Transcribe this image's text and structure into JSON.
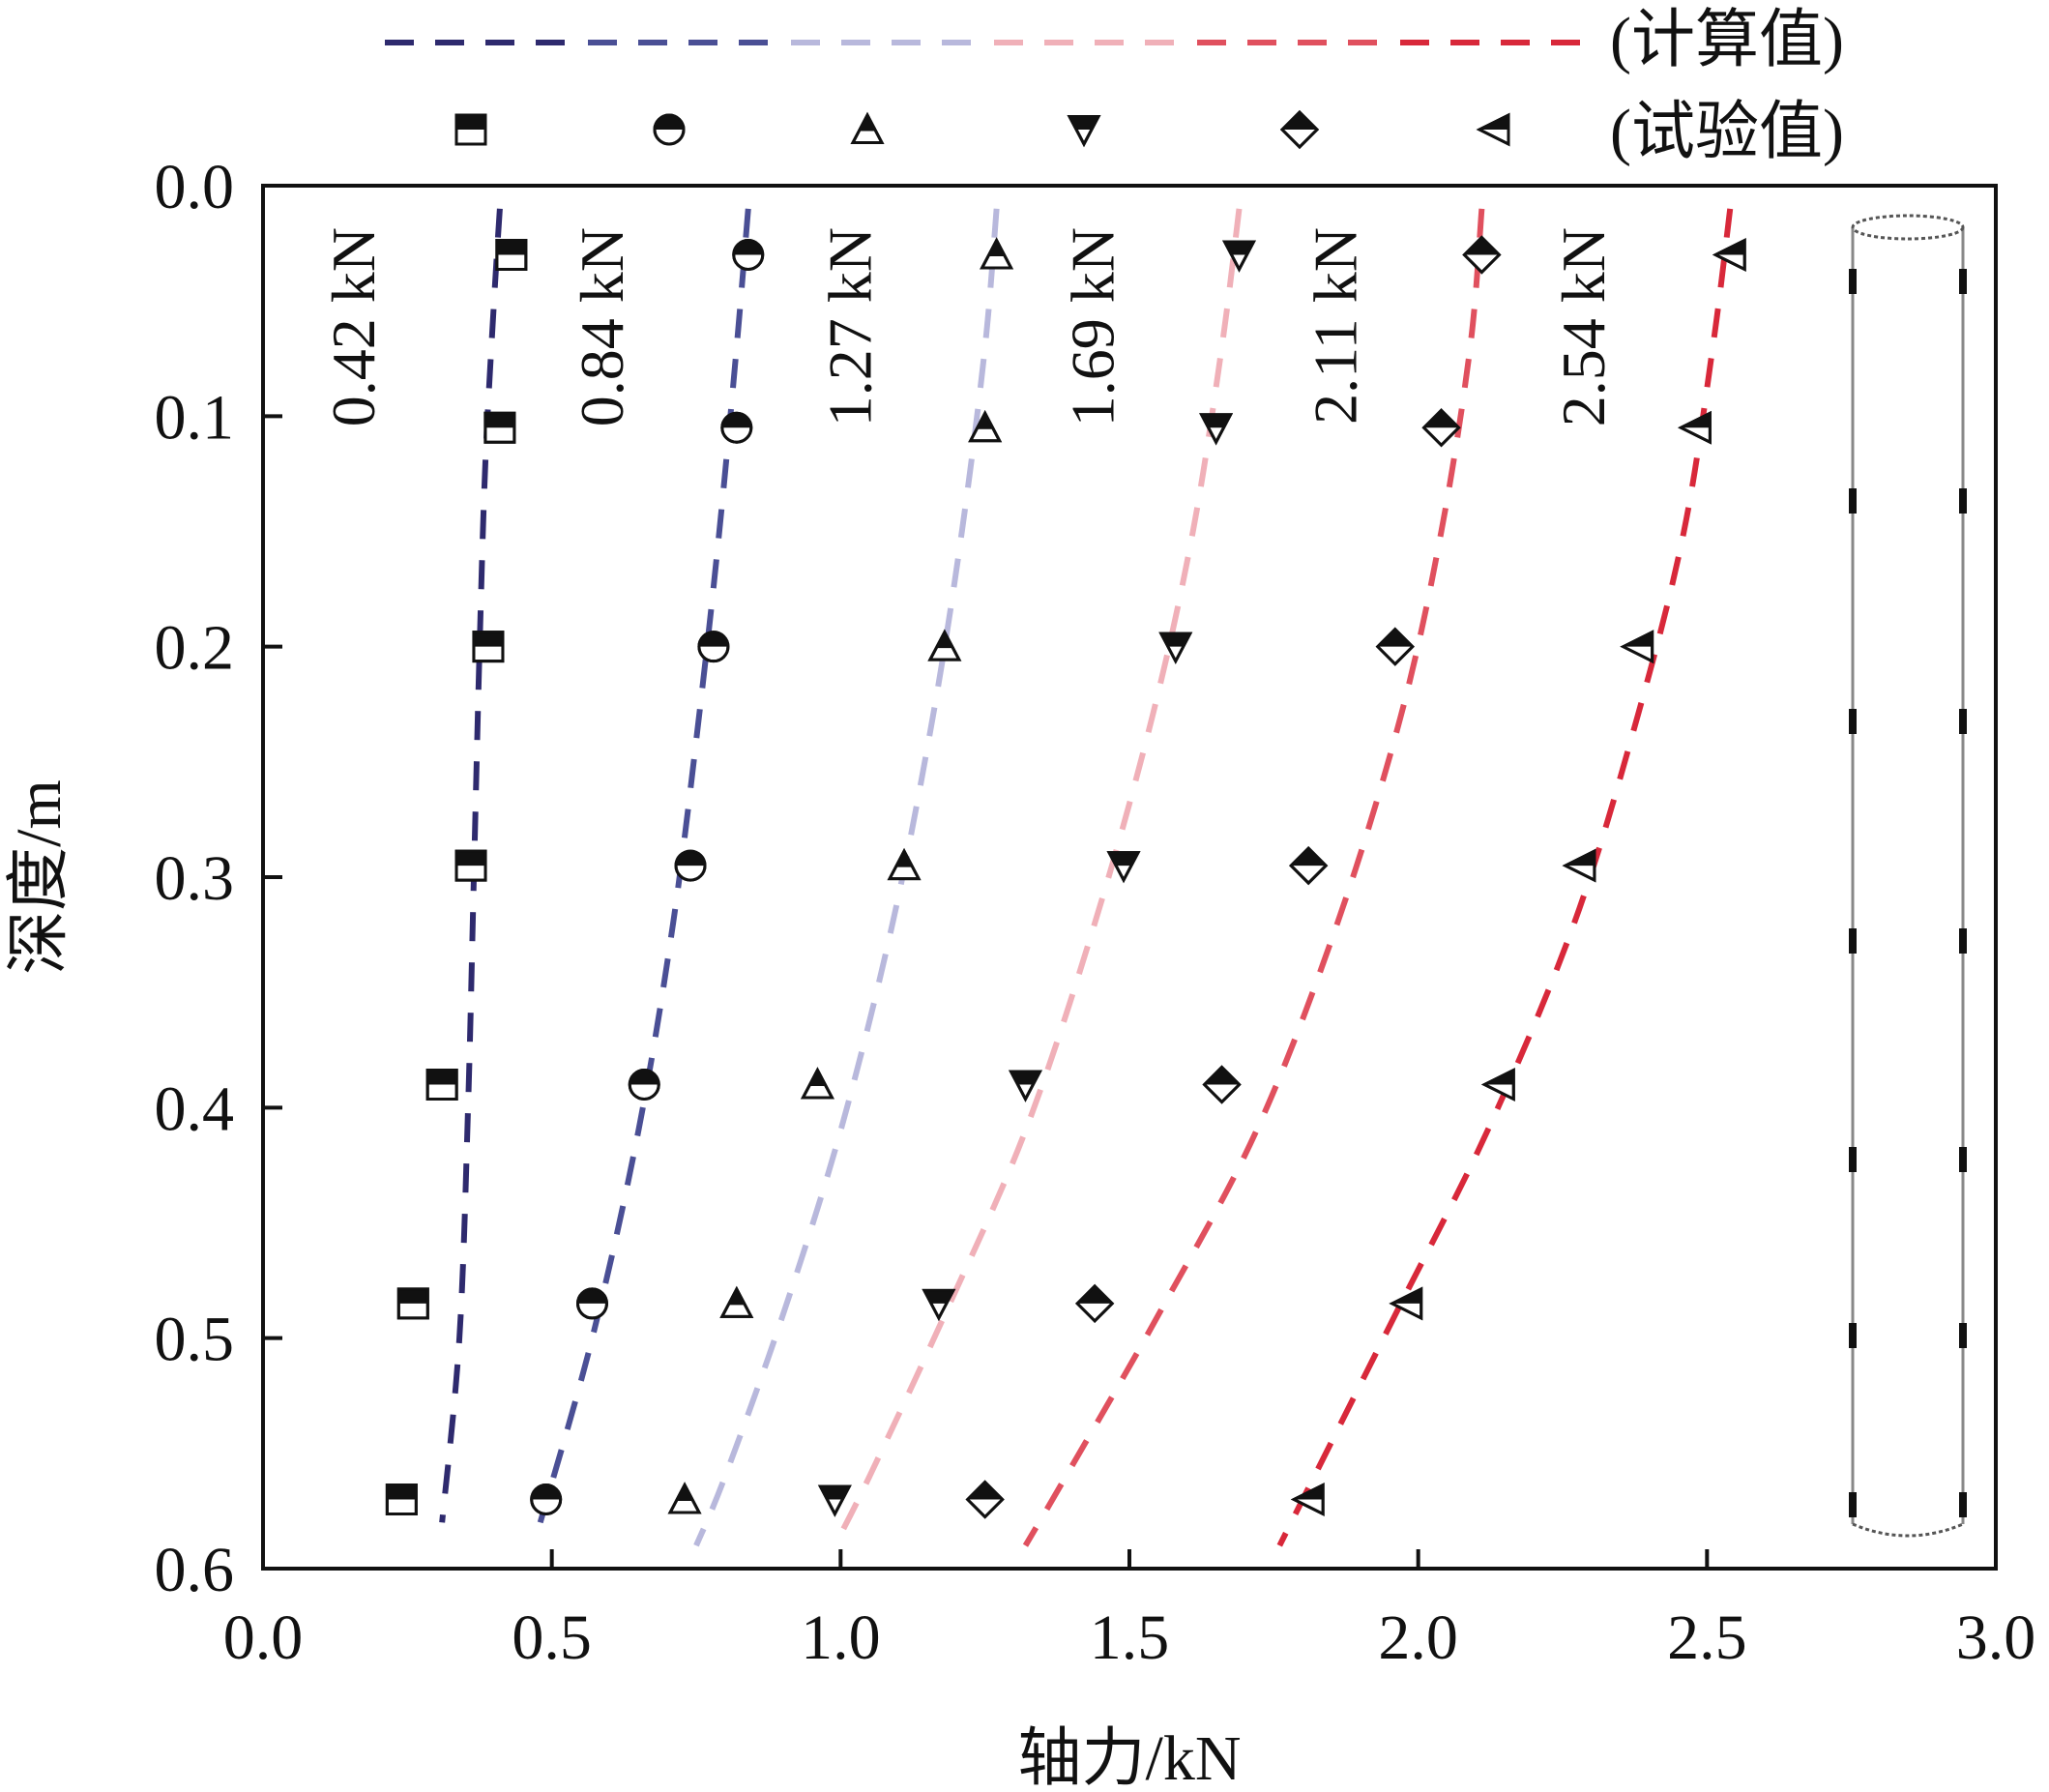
{
  "chart_data": {
    "type": "line",
    "title": "",
    "xlabel": "轴力/kN",
    "ylabel": "深度/m",
    "xlim": [
      0.0,
      3.0
    ],
    "ylim": [
      0.0,
      0.6
    ],
    "y_inverted": true,
    "xticks": [
      "0.0",
      "0.5",
      "1.0",
      "1.5",
      "2.0",
      "2.5",
      "3.0"
    ],
    "yticks": [
      "0.0",
      "0.1",
      "0.2",
      "0.3",
      "0.4",
      "0.5",
      "0.6"
    ],
    "grid": false,
    "legend": {
      "position": "top",
      "line_label": "(计算值)",
      "marker_label": "(试验值)"
    },
    "series": [
      {
        "label": "0.42 kN",
        "color": "#2e2a6e",
        "marker": "square-top-filled",
        "calc": [
          [
            0.41,
            0.01
          ],
          [
            0.4,
            0.05
          ],
          [
            0.385,
            0.12
          ],
          [
            0.375,
            0.2
          ],
          [
            0.365,
            0.3
          ],
          [
            0.355,
            0.4
          ],
          [
            0.34,
            0.5
          ],
          [
            0.31,
            0.58
          ]
        ],
        "test": [
          [
            0.43,
            0.03
          ],
          [
            0.41,
            0.105
          ],
          [
            0.39,
            0.2
          ],
          [
            0.36,
            0.295
          ],
          [
            0.31,
            0.39
          ],
          [
            0.26,
            0.485
          ],
          [
            0.24,
            0.57
          ]
        ]
      },
      {
        "label": "0.84 kN",
        "color": "#4a4f95",
        "marker": "circle-top-filled",
        "calc": [
          [
            0.84,
            0.01
          ],
          [
            0.82,
            0.07
          ],
          [
            0.79,
            0.15
          ],
          [
            0.755,
            0.23
          ],
          [
            0.71,
            0.32
          ],
          [
            0.65,
            0.41
          ],
          [
            0.57,
            0.5
          ],
          [
            0.48,
            0.58
          ]
        ],
        "test": [
          [
            0.84,
            0.03
          ],
          [
            0.82,
            0.105
          ],
          [
            0.78,
            0.2
          ],
          [
            0.74,
            0.295
          ],
          [
            0.66,
            0.39
          ],
          [
            0.57,
            0.485
          ],
          [
            0.49,
            0.57
          ]
        ]
      },
      {
        "label": "1.27 kN",
        "color": "#b8b8dc",
        "marker": "triangle-up-top-filled",
        "calc": [
          [
            1.27,
            0.01
          ],
          [
            1.25,
            0.07
          ],
          [
            1.21,
            0.15
          ],
          [
            1.16,
            0.23
          ],
          [
            1.09,
            0.32
          ],
          [
            1.0,
            0.41
          ],
          [
            0.9,
            0.49
          ],
          [
            0.8,
            0.56
          ],
          [
            0.75,
            0.59
          ]
        ],
        "test": [
          [
            1.27,
            0.03
          ],
          [
            1.25,
            0.105
          ],
          [
            1.18,
            0.2
          ],
          [
            1.11,
            0.295
          ],
          [
            0.96,
            0.39
          ],
          [
            0.82,
            0.485
          ],
          [
            0.73,
            0.57
          ]
        ]
      },
      {
        "label": "1.69 kN",
        "color": "#f0b0b8",
        "marker": "triangle-down-top-filled",
        "calc": [
          [
            1.69,
            0.01
          ],
          [
            1.66,
            0.07
          ],
          [
            1.61,
            0.15
          ],
          [
            1.54,
            0.23
          ],
          [
            1.44,
            0.32
          ],
          [
            1.32,
            0.41
          ],
          [
            1.18,
            0.49
          ],
          [
            1.05,
            0.56
          ],
          [
            0.99,
            0.59
          ]
        ],
        "test": [
          [
            1.69,
            0.03
          ],
          [
            1.65,
            0.105
          ],
          [
            1.58,
            0.2
          ],
          [
            1.49,
            0.295
          ],
          [
            1.32,
            0.39
          ],
          [
            1.17,
            0.485
          ],
          [
            0.99,
            0.57
          ]
        ]
      },
      {
        "label": "2.11 kN",
        "color": "#e0505e",
        "marker": "diamond-top-filled",
        "calc": [
          [
            2.11,
            0.01
          ],
          [
            2.09,
            0.07
          ],
          [
            2.04,
            0.15
          ],
          [
            1.97,
            0.23
          ],
          [
            1.86,
            0.32
          ],
          [
            1.72,
            0.41
          ],
          [
            1.55,
            0.49
          ],
          [
            1.39,
            0.56
          ],
          [
            1.32,
            0.59
          ]
        ],
        "test": [
          [
            2.11,
            0.03
          ],
          [
            2.04,
            0.105
          ],
          [
            1.96,
            0.2
          ],
          [
            1.81,
            0.295
          ],
          [
            1.66,
            0.39
          ],
          [
            1.44,
            0.485
          ],
          [
            1.25,
            0.57
          ]
        ]
      },
      {
        "label": "2.54 kN",
        "color": "#d8283a",
        "marker": "triangle-left-top-filled",
        "calc": [
          [
            2.54,
            0.01
          ],
          [
            2.51,
            0.07
          ],
          [
            2.46,
            0.15
          ],
          [
            2.38,
            0.23
          ],
          [
            2.27,
            0.32
          ],
          [
            2.12,
            0.41
          ],
          [
            1.96,
            0.49
          ],
          [
            1.82,
            0.56
          ],
          [
            1.76,
            0.59
          ]
        ],
        "test": [
          [
            2.54,
            0.03
          ],
          [
            2.48,
            0.105
          ],
          [
            2.38,
            0.2
          ],
          [
            2.28,
            0.295
          ],
          [
            2.14,
            0.39
          ],
          [
            1.98,
            0.485
          ],
          [
            1.81,
            0.57
          ]
        ]
      }
    ]
  }
}
